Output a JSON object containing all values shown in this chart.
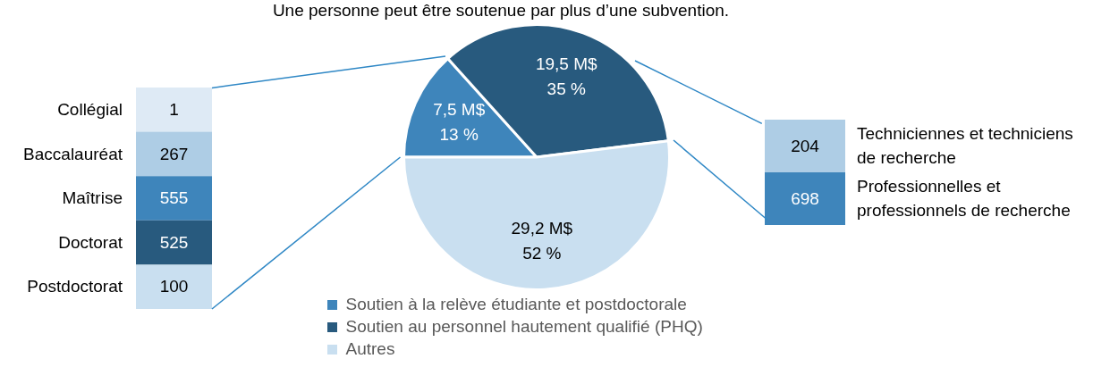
{
  "chart_data": [
    {
      "type": "other",
      "categories": [
        "Collégial",
        "Baccalauréat",
        "Maîtrise",
        "Doctorat",
        "Postdoctorat"
      ],
      "values": [
        1,
        267,
        555,
        525,
        100
      ],
      "colors": [
        "#deeaf5",
        "#aecde5",
        "#3e85bb",
        "#285a7e",
        "#c9dff0"
      ],
      "data_labels": true
    },
    {
      "type": "pie",
      "categories": [
        "Soutien à la relève étudiante et postdoctorale",
        "Soutien au personnel hautement qualifié (PHQ)",
        "Autres"
      ],
      "values": [
        7.5,
        19.5,
        29.2
      ],
      "colors": [
        "#3e85bb",
        "#285a7e",
        "#c9dff0"
      ],
      "value_labels": [
        "7,5 M$\n13 %",
        "19,5 M$\n35 %",
        "29,2 M$\n52 %"
      ],
      "legend": "bottom",
      "annotations": [
        "Une personne peut être soutenue par plus d’une subvention."
      ]
    },
    {
      "type": "other",
      "categories": [
        "Techniciennes et techniciens de recherche",
        "Professionnelles et professionnels de recherche"
      ],
      "values": [
        204,
        698
      ],
      "colors": [
        "#aecde5",
        "#3e85bb"
      ],
      "data_labels": true
    }
  ]
}
